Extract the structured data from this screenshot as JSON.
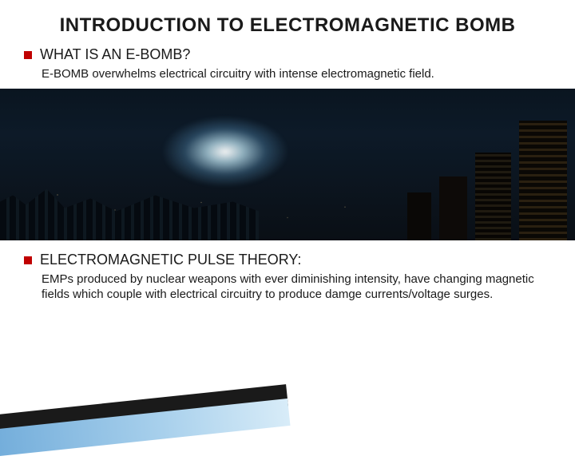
{
  "title": "INTRODUCTION TO ELECTROMAGNETIC BOMB",
  "section1": {
    "heading": "WHAT IS AN E-BOMB?",
    "body": "E-BOMB overwhelms electrical circuitry with intense electromagnetic field."
  },
  "section2": {
    "heading": "ELECTROMAGNETIC PULSE THEORY:",
    "body": "EMPs produced by nuclear weapons with ever diminishing intensity, have changing magnetic fields which couple with electrical circuitry to produce damge currents/voltage surges."
  },
  "styling": {
    "bullet_color": "#c00000",
    "title_color": "#1a1a1a",
    "text_color": "#1a1a1a",
    "background": "#ffffff",
    "accent_stripe_dark": "#1a1a1a",
    "accent_stripe_blue_start": "#6ba8d8",
    "accent_stripe_blue_end": "#d8ecf8",
    "title_fontsize": 24,
    "heading_fontsize": 18,
    "body_fontsize": 15,
    "image": {
      "description": "night-city-skyline-with-emp-flash",
      "bg_gradient_top": "#0a1520",
      "bg_gradient_bottom": "#0a0f15",
      "glow_color": "#ffffff"
    }
  }
}
